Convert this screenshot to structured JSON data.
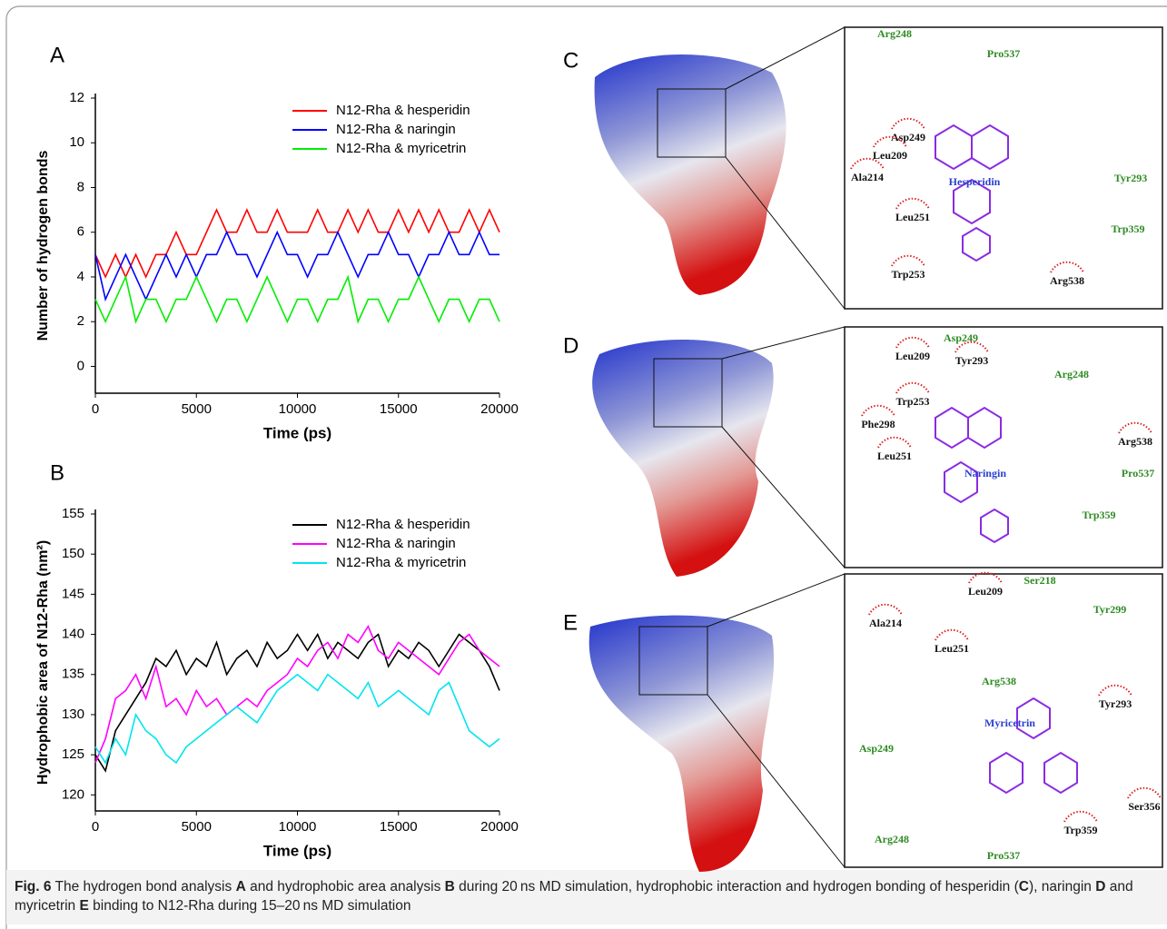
{
  "chart_data": [
    {
      "type": "line",
      "panel_label": "A",
      "xlabel": "Time (ps)",
      "ylabel": "Number of hydrogen bonds",
      "x": [
        0,
        500,
        1000,
        1500,
        2000,
        2500,
        3000,
        3500,
        4000,
        4500,
        5000,
        5500,
        6000,
        6500,
        7000,
        7500,
        8000,
        8500,
        9000,
        9500,
        10000,
        10500,
        11000,
        11500,
        12000,
        12500,
        13000,
        13500,
        14000,
        14500,
        15000,
        15500,
        16000,
        16500,
        17000,
        17500,
        18000,
        18500,
        19000,
        19500,
        20000
      ],
      "xlim": [
        0,
        20000
      ],
      "xticks": [
        0,
        5000,
        10000,
        15000,
        20000
      ],
      "ylim": [
        -1.2,
        12
      ],
      "yticks": [
        0,
        2,
        4,
        6,
        8,
        10,
        12
      ],
      "series": [
        {
          "name": "N12-Rha & hesperidin",
          "color": "#ff0000",
          "values": [
            5,
            4,
            5,
            4,
            5,
            4,
            5,
            5,
            6,
            5,
            5,
            6,
            7,
            6,
            6,
            7,
            6,
            6,
            7,
            6,
            6,
            6,
            7,
            6,
            6,
            7,
            6,
            7,
            6,
            6,
            7,
            6,
            7,
            6,
            7,
            6,
            6,
            7,
            6,
            7,
            6
          ]
        },
        {
          "name": "N12-Rha & naringin",
          "color": "#0000ff",
          "values": [
            5,
            3,
            4,
            5,
            4,
            3,
            4,
            5,
            4,
            5,
            4,
            5,
            5,
            6,
            5,
            5,
            4,
            5,
            6,
            5,
            5,
            4,
            5,
            5,
            6,
            5,
            4,
            5,
            5,
            6,
            5,
            5,
            4,
            5,
            5,
            6,
            5,
            5,
            6,
            5,
            5
          ]
        },
        {
          "name": "N12-Rha & myricetrin",
          "color": "#00ee00",
          "values": [
            3,
            2,
            3,
            4,
            2,
            3,
            3,
            2,
            3,
            3,
            4,
            3,
            2,
            3,
            3,
            2,
            3,
            4,
            3,
            2,
            3,
            3,
            2,
            3,
            3,
            4,
            2,
            3,
            3,
            2,
            3,
            3,
            4,
            3,
            2,
            3,
            3,
            2,
            3,
            3,
            2
          ]
        }
      ]
    },
    {
      "type": "line",
      "panel_label": "B",
      "xlabel": "Time (ps)",
      "ylabel": "Hydrophobic area of N12-Rha (nm²)",
      "x": [
        0,
        500,
        1000,
        1500,
        2000,
        2500,
        3000,
        3500,
        4000,
        4500,
        5000,
        5500,
        6000,
        6500,
        7000,
        7500,
        8000,
        8500,
        9000,
        9500,
        10000,
        10500,
        11000,
        11500,
        12000,
        12500,
        13000,
        13500,
        14000,
        14500,
        15000,
        15500,
        16000,
        16500,
        17000,
        17500,
        18000,
        18500,
        19000,
        19500,
        20000
      ],
      "xlim": [
        0,
        20000
      ],
      "xticks": [
        0,
        5000,
        10000,
        15000,
        20000
      ],
      "ylim": [
        118,
        155
      ],
      "yticks": [
        120,
        125,
        130,
        135,
        140,
        145,
        150,
        155
      ],
      "series": [
        {
          "name": "N12-Rha & hesperidin",
          "color": "#000000",
          "values": [
            125,
            123,
            128,
            130,
            132,
            134,
            137,
            136,
            138,
            135,
            137,
            136,
            139,
            135,
            137,
            138,
            136,
            139,
            137,
            138,
            140,
            138,
            140,
            137,
            139,
            138,
            137,
            139,
            140,
            136,
            138,
            137,
            139,
            138,
            136,
            138,
            140,
            139,
            138,
            136,
            133
          ]
        },
        {
          "name": "N12-Rha & naringin",
          "color": "#ff00ff",
          "values": [
            124,
            127,
            132,
            133,
            135,
            132,
            136,
            131,
            132,
            130,
            133,
            131,
            132,
            130,
            131,
            132,
            131,
            133,
            134,
            135,
            137,
            136,
            138,
            139,
            137,
            140,
            139,
            141,
            138,
            137,
            139,
            138,
            137,
            136,
            135,
            137,
            139,
            140,
            138,
            137,
            136
          ]
        },
        {
          "name": "N12-Rha & myricetrin",
          "color": "#00e5ee",
          "values": [
            126,
            124,
            127,
            125,
            130,
            128,
            127,
            125,
            124,
            126,
            127,
            128,
            129,
            130,
            131,
            130,
            129,
            131,
            133,
            134,
            135,
            134,
            133,
            135,
            134,
            133,
            132,
            134,
            131,
            132,
            133,
            132,
            131,
            130,
            133,
            134,
            131,
            128,
            127,
            126,
            127
          ]
        }
      ]
    }
  ],
  "panels": [
    {
      "label": "C",
      "ligand": "Hesperidin",
      "residues": [
        {
          "name": "Arg248",
          "hbond": true
        },
        {
          "name": "Pro537",
          "hbond": true
        },
        {
          "name": "Asp249",
          "hbond": false
        },
        {
          "name": "Leu209",
          "hbond": false
        },
        {
          "name": "Ala214",
          "hbond": false
        },
        {
          "name": "Tyr293",
          "hbond": true
        },
        {
          "name": "Leu251",
          "hbond": false
        },
        {
          "name": "Trp359",
          "hbond": true
        },
        {
          "name": "Trp253",
          "hbond": false
        },
        {
          "name": "Arg538",
          "hbond": false
        }
      ]
    },
    {
      "label": "D",
      "ligand": "Naringin",
      "residues": [
        {
          "name": "Asp249",
          "hbond": true
        },
        {
          "name": "Leu209",
          "hbond": false
        },
        {
          "name": "Tyr293",
          "hbond": false
        },
        {
          "name": "Arg248",
          "hbond": true
        },
        {
          "name": "Trp253",
          "hbond": false
        },
        {
          "name": "Phe298",
          "hbond": false
        },
        {
          "name": "Arg538",
          "hbond": false
        },
        {
          "name": "Leu251",
          "hbond": false
        },
        {
          "name": "Pro537",
          "hbond": true
        },
        {
          "name": "Trp359",
          "hbond": true
        }
      ]
    },
    {
      "label": "E",
      "ligand": "Myricetrin",
      "residues": [
        {
          "name": "Leu209",
          "hbond": false
        },
        {
          "name": "Ser218",
          "hbond": true
        },
        {
          "name": "Tyr299",
          "hbond": true
        },
        {
          "name": "Ala214",
          "hbond": false
        },
        {
          "name": "Leu251",
          "hbond": false
        },
        {
          "name": "Arg538",
          "hbond": true
        },
        {
          "name": "Tyr293",
          "hbond": false
        },
        {
          "name": "Asp249",
          "hbond": true
        },
        {
          "name": "Ser356",
          "hbond": false
        },
        {
          "name": "Arg248",
          "hbond": true
        },
        {
          "name": "Trp359",
          "hbond": false
        },
        {
          "name": "Pro537",
          "hbond": true
        }
      ]
    }
  ],
  "caption": [
    "Fig. 6",
    " The hydrogen bond analysis ",
    "A",
    " and hydrophobic area analysis ",
    "B",
    " during 20 ns MD simulation, hydrophobic interaction and hydrogen bonding of hesperidin (",
    "C",
    "), naringin ",
    "D",
    " and myricetrin ",
    "E",
    " binding to N12-Rha during 15–20 ns MD simulation"
  ]
}
